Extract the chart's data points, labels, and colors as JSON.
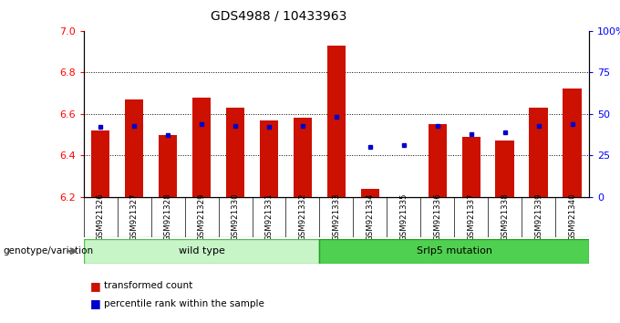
{
  "title": "GDS4988 / 10433963",
  "samples": [
    "GSM921326",
    "GSM921327",
    "GSM921328",
    "GSM921329",
    "GSM921330",
    "GSM921331",
    "GSM921332",
    "GSM921333",
    "GSM921334",
    "GSM921335",
    "GSM921336",
    "GSM921337",
    "GSM921338",
    "GSM921339",
    "GSM921340"
  ],
  "transformed_count": [
    6.52,
    6.67,
    6.5,
    6.68,
    6.63,
    6.57,
    6.58,
    6.93,
    6.24,
    6.2,
    6.55,
    6.49,
    6.47,
    6.63,
    6.72
  ],
  "percentile_rank": [
    42,
    43,
    37,
    44,
    43,
    42,
    43,
    48,
    30,
    31,
    43,
    38,
    39,
    43,
    44
  ],
  "ylim_left": [
    6.2,
    7.0
  ],
  "ylim_right": [
    0,
    100
  ],
  "yticks_left": [
    6.2,
    6.4,
    6.6,
    6.8,
    7.0
  ],
  "yticks_right": [
    0,
    25,
    50,
    75,
    100
  ],
  "ytick_labels_right": [
    "0",
    "25",
    "50",
    "75",
    "100%"
  ],
  "group_labels": [
    "wild type",
    "Srlp5 mutation"
  ],
  "wt_count": 7,
  "bar_color": "#cc1100",
  "dot_color": "#0000cc",
  "grid_lines": [
    6.4,
    6.6,
    6.8
  ],
  "bar_bottom": 6.2,
  "bar_width": 0.55,
  "legend_red": "transformed count",
  "legend_blue": "percentile rank within the sample",
  "genotype_label": "genotype/variation",
  "wt_facecolor": "#c8f5c8",
  "wt_edgecolor": "#50c050",
  "mut_facecolor": "#50d050",
  "mut_edgecolor": "#20a020",
  "gray_bg": "#c8c8c8"
}
